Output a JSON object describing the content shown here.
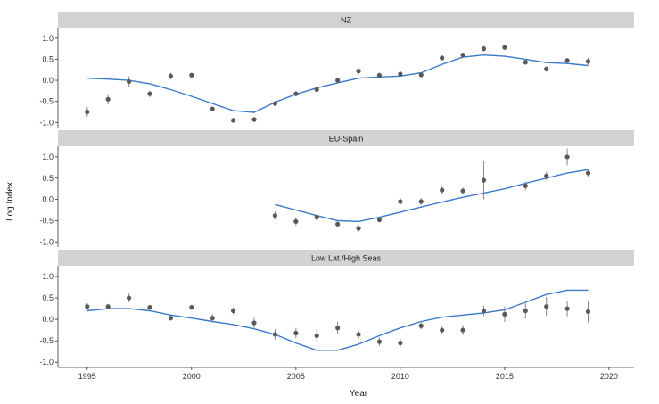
{
  "chart_data": {
    "type": "scatter",
    "ylabel": "Log Index",
    "xlabel": "Year",
    "xlim": [
      1993.6,
      2021.2
    ],
    "x_ticks": [
      1995,
      2000,
      2005,
      2010,
      2015,
      2020
    ],
    "y_ticks": [
      -1.0,
      -0.5,
      0.0,
      0.5,
      1.0
    ],
    "ylim": [
      -1.12,
      1.25
    ],
    "grid": false,
    "colors": {
      "points": "#595959",
      "fit_line": "#3a78c9",
      "strip": "#d3d3d3",
      "axis": "#333333"
    },
    "panels": [
      {
        "title": "NZ",
        "observed": {
          "x": [
            1995,
            1996,
            1997,
            1998,
            1999,
            2000,
            2001,
            2002,
            2003,
            2004,
            2005,
            2006,
            2007,
            2008,
            2009,
            2010,
            2011,
            2012,
            2013,
            2014,
            2015,
            2016,
            2017,
            2018,
            2019
          ],
          "y": [
            -0.75,
            -0.45,
            -0.03,
            -0.32,
            0.1,
            0.12,
            -0.68,
            -0.95,
            -0.93,
            -0.55,
            -0.32,
            -0.22,
            0.0,
            0.22,
            0.12,
            0.15,
            0.13,
            0.53,
            0.6,
            0.75,
            0.78,
            0.43,
            0.27,
            0.47,
            0.45
          ],
          "err": [
            0.12,
            0.12,
            0.12,
            0.08,
            0.08,
            0.06,
            0.06,
            0.06,
            0.06,
            0.06,
            0.06,
            0.06,
            0.06,
            0.08,
            0.06,
            0.06,
            0.06,
            0.06,
            0.06,
            0.06,
            0.06,
            0.06,
            0.06,
            0.06,
            0.08
          ]
        },
        "fitted": {
          "x": [
            1995,
            1996,
            1997,
            1998,
            1999,
            2000,
            2001,
            2002,
            2003,
            2004,
            2005,
            2006,
            2007,
            2008,
            2009,
            2010,
            2011,
            2012,
            2013,
            2014,
            2015,
            2016,
            2017,
            2018,
            2019
          ],
          "y": [
            0.05,
            0.03,
            0.0,
            -0.08,
            -0.22,
            -0.38,
            -0.55,
            -0.72,
            -0.76,
            -0.52,
            -0.33,
            -0.18,
            -0.06,
            0.05,
            0.08,
            0.1,
            0.18,
            0.38,
            0.55,
            0.6,
            0.57,
            0.5,
            0.42,
            0.4,
            0.35
          ]
        }
      },
      {
        "title": "EU-Spain",
        "observed": {
          "x": [
            2004,
            2005,
            2006,
            2007,
            2008,
            2009,
            2010,
            2011,
            2012,
            2013,
            2014,
            2016,
            2017,
            2018,
            2019
          ],
          "y": [
            -0.38,
            -0.52,
            -0.42,
            -0.58,
            -0.68,
            -0.48,
            -0.05,
            -0.05,
            0.22,
            0.2,
            0.45,
            0.32,
            0.55,
            1.0,
            0.62
          ],
          "err": [
            0.1,
            0.1,
            0.08,
            0.06,
            0.08,
            0.06,
            0.08,
            0.08,
            0.08,
            0.08,
            0.45,
            0.1,
            0.1,
            0.2,
            0.1
          ]
        },
        "fitted": {
          "x": [
            2004,
            2005,
            2006,
            2007,
            2008,
            2009,
            2010,
            2011,
            2012,
            2013,
            2014,
            2015,
            2016,
            2017,
            2018,
            2019
          ],
          "y": [
            -0.12,
            -0.25,
            -0.38,
            -0.5,
            -0.52,
            -0.42,
            -0.3,
            -0.18,
            -0.06,
            0.05,
            0.15,
            0.25,
            0.38,
            0.5,
            0.62,
            0.7
          ]
        }
      },
      {
        "title": "Low Lat./High Seas",
        "observed": {
          "x": [
            1995,
            1996,
            1997,
            1998,
            1999,
            2000,
            2001,
            2002,
            2003,
            2004,
            2005,
            2006,
            2007,
            2008,
            2009,
            2010,
            2011,
            2012,
            2013,
            2014,
            2015,
            2016,
            2017,
            2018,
            2019
          ],
          "y": [
            0.3,
            0.3,
            0.5,
            0.28,
            0.03,
            0.28,
            0.03,
            0.2,
            -0.08,
            -0.35,
            -0.32,
            -0.38,
            -0.2,
            -0.35,
            -0.52,
            -0.55,
            -0.15,
            -0.25,
            -0.25,
            0.2,
            0.12,
            0.2,
            0.3,
            0.25,
            0.18
          ],
          "err": [
            0.08,
            0.06,
            0.1,
            0.06,
            0.06,
            0.06,
            0.1,
            0.08,
            0.12,
            0.12,
            0.12,
            0.15,
            0.15,
            0.1,
            0.1,
            0.1,
            0.08,
            0.08,
            0.12,
            0.12,
            0.18,
            0.18,
            0.22,
            0.18,
            0.25
          ]
        },
        "fitted": {
          "x": [
            1995,
            1996,
            1997,
            1998,
            1999,
            2000,
            2001,
            2002,
            2003,
            2004,
            2005,
            2006,
            2007,
            2008,
            2009,
            2010,
            2011,
            2012,
            2013,
            2014,
            2015,
            2016,
            2017,
            2018,
            2019
          ],
          "y": [
            0.2,
            0.25,
            0.25,
            0.2,
            0.1,
            0.03,
            -0.05,
            -0.12,
            -0.22,
            -0.35,
            -0.55,
            -0.72,
            -0.72,
            -0.58,
            -0.38,
            -0.2,
            -0.05,
            0.05,
            0.1,
            0.15,
            0.22,
            0.4,
            0.58,
            0.68,
            0.68
          ]
        }
      }
    ]
  }
}
